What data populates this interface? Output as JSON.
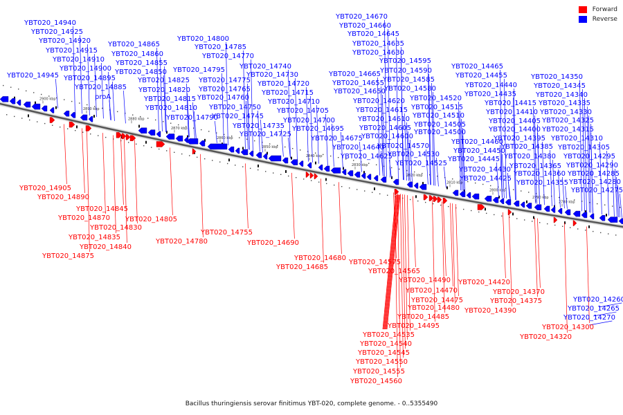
{
  "legend": {
    "forward": {
      "label": "Forward",
      "color": "#ff0000"
    },
    "reverse": {
      "label": "Reverse",
      "color": "#0000ff"
    }
  },
  "caption": "Bacillus thuringiensis serovar finitimus YBT-020, complete genome. - 0..5355490",
  "scale_ticks": [
    "2900 kbp",
    "2890 kbp",
    "2880 kbp",
    "2870 kbp",
    "2860 kbp",
    "2850 kbp",
    "2840 kbp",
    "2830 kbp",
    "2820 kbp",
    "2810 kbp",
    "2800 kbp",
    "2790 kbp",
    "2780 kbp"
  ],
  "reverse_genes": [
    "YBT020_14940",
    "YBT020_14925",
    "YBT020_14920",
    "YBT020_14915",
    "YBT020_14910",
    "YBT020_14900",
    "YBT020_14945",
    "YBT020_14895",
    "YBT020_14885",
    "proA",
    "YBT020_14865",
    "YBT020_14860",
    "YBT020_14855",
    "YBT020_14850",
    "YBT020_14825",
    "YBT020_14820",
    "YBT020_14815",
    "YBT020_14810",
    "YBT020_14800",
    "YBT020_14785",
    "YBT020_14770",
    "YBT020_14795",
    "YBT020_14775",
    "YBT020_14765",
    "YBT020_14760",
    "YBT020_14790",
    "YBT020_14750",
    "YBT020_14745",
    "YBT020_14735",
    "YBT020_14725",
    "YBT020_14740",
    "YBT020_14730",
    "YBT020_14720",
    "YBT020_14715",
    "YBT020_14710",
    "YBT020_14705",
    "YBT020_14700",
    "YBT020_14695",
    "YBT020_14670",
    "YBT020_14660",
    "YBT020_14645",
    "YBT020_14635",
    "YBT020_14630",
    "YBT020_14665",
    "YBT020_14655",
    "YBT020_14650",
    "YBT020_14675",
    "YBT020_14620",
    "YBT020_14615",
    "YBT020_14610",
    "YBT020_14605",
    "YBT020_14600",
    "YBT020_14640",
    "YBT020_14625",
    "YBT020_14595",
    "YBT020_14590",
    "YBT020_14585",
    "YBT020_14580",
    "YBT020_14570",
    "YBT020_14530",
    "YBT020_14525",
    "YBT020_14520",
    "YBT020_14515",
    "YBT020_14510",
    "YBT020_14505",
    "YBT020_14500",
    "YBT020_14465",
    "YBT020_14455",
    "YBT020_14440",
    "YBT020_14435",
    "YBT020_14415",
    "YBT020_14410",
    "YBT020_14405",
    "YBT020_14400",
    "YBT020_14460",
    "YBT020_14450",
    "YBT020_14445",
    "YBT020_14395",
    "YBT020_14430",
    "YBT020_14425",
    "YBT020_14385",
    "YBT020_14380",
    "YBT020_14365",
    "YBT020_14360",
    "YBT020_14355",
    "YBT020_14350",
    "YBT020_14345",
    "YBT020_14340",
    "YBT020_14335",
    "YBT020_14330",
    "YBT020_14325",
    "YBT020_14315",
    "YBT020_14310",
    "YBT020_14305",
    "YBT020_14295",
    "YBT020_14290",
    "YBT020_14285",
    "YBT020_14280",
    "YBT020_14275",
    "YBT020_14260",
    "YBT020_14265",
    "YBT020_14270"
  ],
  "forward_genes": [
    "YBT020_14905",
    "YBT020_14890",
    "YBT020_14845",
    "YBT020_14870",
    "YBT020_14830",
    "YBT020_14805",
    "YBT020_14835",
    "YBT020_14840",
    "YBT020_14875",
    "YBT020_14755",
    "YBT020_14780",
    "YBT020_14690",
    "YBT020_14680",
    "YBT020_14685",
    "YBT020_14575",
    "YBT020_14565",
    "YBT020_14490",
    "YBT020_14470",
    "YBT020_14475",
    "YBT020_14480",
    "YBT020_14485",
    "YBT020_14495",
    "YBT020_14535",
    "YBT020_14540",
    "YBT020_14545",
    "YBT020_14550",
    "YBT020_14555",
    "YBT020_14560",
    "YBT020_14420",
    "YBT020_14370",
    "YBT020_14375",
    "YBT020_14390",
    "YBT020_14300",
    "YBT020_14320"
  ]
}
